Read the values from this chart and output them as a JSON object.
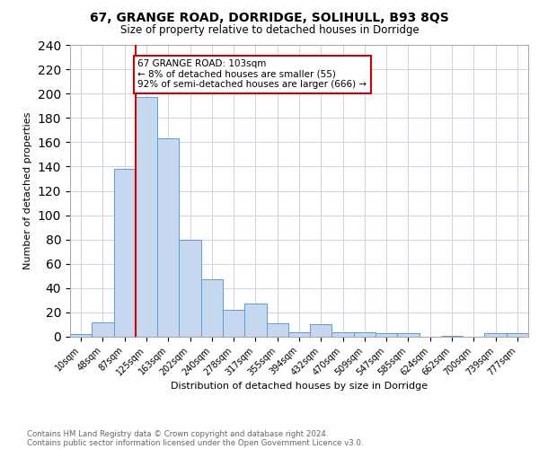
{
  "title1": "67, GRANGE ROAD, DORRIDGE, SOLIHULL, B93 8QS",
  "title2": "Size of property relative to detached houses in Dorridge",
  "xlabel": "Distribution of detached houses by size in Dorridge",
  "ylabel": "Number of detached properties",
  "bin_labels": [
    "10sqm",
    "48sqm",
    "87sqm",
    "125sqm",
    "163sqm",
    "202sqm",
    "240sqm",
    "278sqm",
    "317sqm",
    "355sqm",
    "394sqm",
    "432sqm",
    "470sqm",
    "509sqm",
    "547sqm",
    "585sqm",
    "624sqm",
    "662sqm",
    "700sqm",
    "739sqm",
    "777sqm"
  ],
  "bin_values": [
    2,
    12,
    138,
    197,
    163,
    80,
    47,
    22,
    27,
    11,
    4,
    10,
    4,
    4,
    3,
    3,
    0,
    1,
    0,
    3,
    3
  ],
  "bar_color": "#c5d8f0",
  "bar_edge_color": "#5b9bd5",
  "grid_color": "#c8d4e8",
  "vline_x_index": 2.5,
  "annotation_text": "67 GRANGE ROAD: 103sqm\n← 8% of detached houses are smaller (55)\n92% of semi-detached houses are larger (666) →",
  "annotation_box_color": "#ffffff",
  "annotation_box_edge_color": "#cc0000",
  "footnote1": "Contains HM Land Registry data © Crown copyright and database right 2024.",
  "footnote2": "Contains public sector information licensed under the Open Government Licence v3.0.",
  "vline_color": "#cc0000",
  "ylim": [
    0,
    240
  ],
  "yticks": [
    0,
    20,
    40,
    60,
    80,
    100,
    120,
    140,
    160,
    180,
    200,
    220,
    240
  ]
}
